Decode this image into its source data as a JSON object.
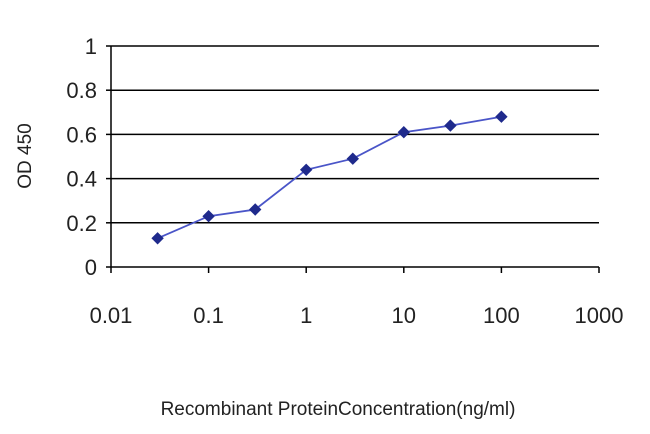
{
  "chart_data": {
    "type": "line",
    "xscale": "log",
    "xlim": [
      0.01,
      1000
    ],
    "ylim": [
      0,
      1
    ],
    "x_ticks": [
      0.01,
      0.1,
      1,
      10,
      100,
      1000
    ],
    "x_tick_labels": [
      "0.01",
      "0.1",
      "1",
      "10",
      "100",
      "1000"
    ],
    "y_ticks": [
      0,
      0.2,
      0.4,
      0.6,
      0.8,
      1
    ],
    "y_tick_labels": [
      "0",
      "0.2",
      "0.4",
      "0.6",
      "0.8",
      "1"
    ],
    "xlabel": "Recombinant ProteinConcentration(ng/ml)",
    "ylabel": "OD 450",
    "grid": "horizontal",
    "series": [
      {
        "x": [
          0.03,
          0.1,
          0.3,
          1,
          3,
          10,
          30,
          100
        ],
        "y": [
          0.13,
          0.23,
          0.26,
          0.44,
          0.49,
          0.61,
          0.64,
          0.68
        ],
        "color": "#1f2a8c",
        "marker": "diamond"
      }
    ]
  }
}
